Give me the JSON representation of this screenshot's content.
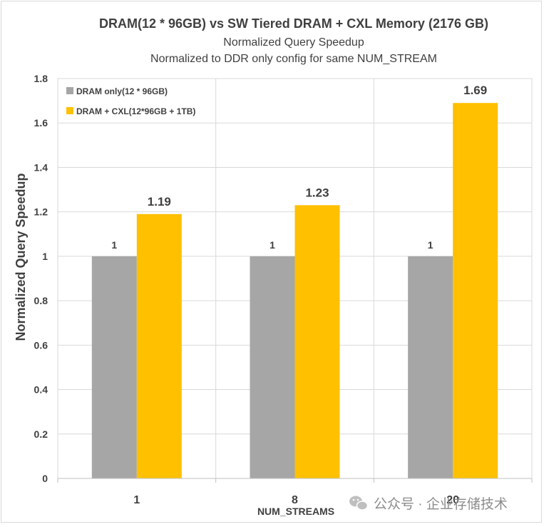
{
  "chart_data": {
    "type": "bar",
    "title": "DRAM(12 * 96GB)  vs SW Tiered DRAM + CXL Memory (2176 GB)",
    "subtitle_1": "Normalized Query Speedup",
    "subtitle_2": "Normalized to DDR  only config for same NUM_STREAM",
    "xlabel": "NUM_STREAMS",
    "ylabel": "Normalized Query Speedup",
    "categories": [
      "1",
      "8",
      "20"
    ],
    "ylim": [
      0,
      1.8
    ],
    "yticks": [
      0,
      0.2,
      0.4,
      0.6,
      0.8,
      1,
      1.2,
      1.4,
      1.6,
      1.8
    ],
    "ytick_labels": [
      "0",
      "0.2",
      "0.4",
      "0.6",
      "0.8",
      "1",
      "1.2",
      "1.4",
      "1.6",
      "1.8"
    ],
    "grid": true,
    "legend_position": "top-left",
    "series": [
      {
        "name": "DRAM only(12 * 96GB)",
        "values": [
          1,
          1,
          1
        ],
        "labels": [
          "1",
          "1",
          "1"
        ],
        "color": "#a6a6a6"
      },
      {
        "name": "DRAM + CXL(12*96GB + 1TB)",
        "values": [
          1.19,
          1.23,
          1.69
        ],
        "labels": [
          "1.19",
          "1.23",
          "1.69"
        ],
        "color": "#ffc000"
      }
    ]
  },
  "watermark": {
    "icon": "wechat-icon",
    "text": "公众号 · 企业存储技术"
  }
}
